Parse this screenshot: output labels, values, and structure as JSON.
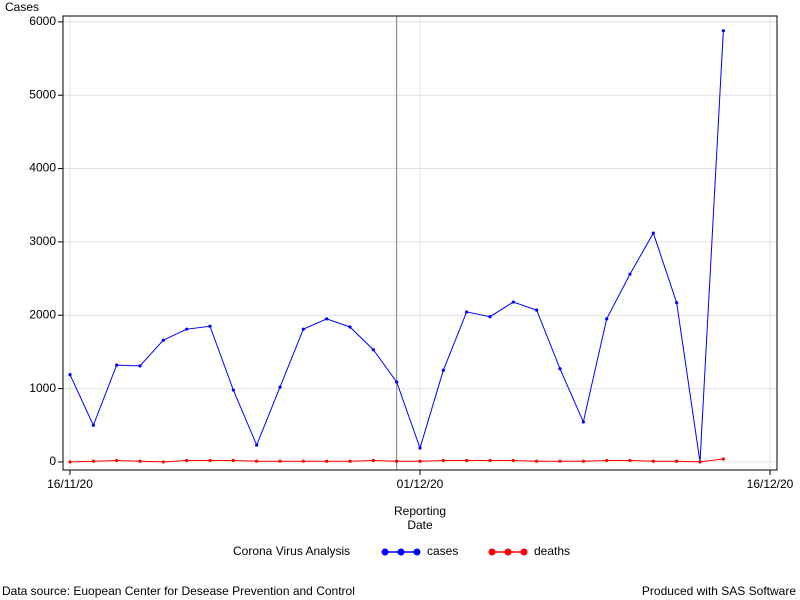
{
  "chart_data": {
    "type": "line",
    "y_label": "Cases",
    "x_label": [
      "Reporting",
      "Date"
    ],
    "legend_title": "Corona Virus Analysis",
    "footnote_left": "Data source: Euopean Center for Desease Prevention and Control",
    "footnote_right": "Produced with SAS Software",
    "x": [
      "2020-11-16",
      "2020-11-17",
      "2020-11-18",
      "2020-11-19",
      "2020-11-20",
      "2020-11-21",
      "2020-11-22",
      "2020-11-23",
      "2020-11-24",
      "2020-11-25",
      "2020-11-26",
      "2020-11-27",
      "2020-11-28",
      "2020-11-29",
      "2020-11-30",
      "2020-12-01",
      "2020-12-02",
      "2020-12-03",
      "2020-12-04",
      "2020-12-05",
      "2020-12-06",
      "2020-12-07",
      "2020-12-08",
      "2020-12-09",
      "2020-12-10",
      "2020-12-11",
      "2020-12-12",
      "2020-12-13",
      "2020-12-14"
    ],
    "series": [
      {
        "name": "cases",
        "color": "#0000ff",
        "values": [
          1190,
          500,
          1320,
          1310,
          1660,
          1810,
          1850,
          980,
          230,
          1020,
          1810,
          1950,
          1840,
          1530,
          1090,
          190,
          1250,
          2045,
          1980,
          2180,
          2070,
          1270,
          545,
          1950,
          2560,
          3120,
          2170,
          0,
          5880
        ]
      },
      {
        "name": "deaths",
        "color": "#ff0000",
        "values": [
          0,
          10,
          20,
          10,
          0,
          20,
          20,
          20,
          10,
          10,
          10,
          10,
          10,
          20,
          10,
          10,
          20,
          20,
          20,
          20,
          10,
          10,
          10,
          20,
          20,
          10,
          10,
          0,
          40
        ]
      }
    ],
    "xlim": [
      "2020-11-16",
      "2020-12-16"
    ],
    "xticks": [
      {
        "value": "2020-11-16",
        "label": "16/11/20"
      },
      {
        "value": "2020-12-01",
        "label": "01/12/20"
      },
      {
        "value": "2020-12-16",
        "label": "16/12/20"
      }
    ],
    "x_reference": "2020-11-30",
    "ylim": [
      -110,
      6080
    ],
    "yticks": [
      0,
      1000,
      2000,
      3000,
      4000,
      5000,
      6000
    ],
    "grid": true
  }
}
